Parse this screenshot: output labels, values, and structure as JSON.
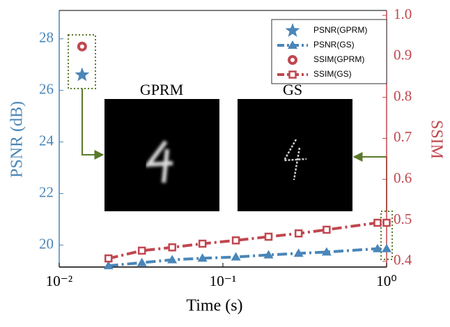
{
  "chart_data": {
    "type": "line",
    "x_label": "Time (s)",
    "y_label": "PSNR (dB)",
    "y2_label": "SSIM",
    "annotations": [
      "GPRM",
      "GS"
    ],
    "x_scale": "log",
    "xlim": [
      0.01,
      1
    ],
    "xticks": [
      {
        "value": 0.01,
        "label": "10⁻²"
      },
      {
        "value": 0.1,
        "label": "10⁻¹"
      },
      {
        "value": 1,
        "label": "10⁰"
      }
    ],
    "ylim": [
      19.15,
      29.1
    ],
    "yticks": [
      20,
      22,
      24,
      26,
      28
    ],
    "y2lim": [
      0.386,
      1.012
    ],
    "y2ticks": [
      0.4,
      0.5,
      0.6,
      0.7,
      0.8,
      0.9,
      {
        "value": 1,
        "label": "1.0"
      }
    ],
    "y_color": "#4a86b8",
    "y2_color": "#c0474f",
    "series": [
      {
        "name": "PSNR(GPRM)",
        "color": "#4a86b8",
        "marker": "star",
        "line": false,
        "x": [
          0.0138
        ],
        "values": [
          26.6
        ]
      },
      {
        "name": "PSNR(GS)",
        "color": "#4a86b8",
        "marker": "triangle",
        "line": true,
        "x": [
          0.02,
          0.032,
          0.049,
          0.075,
          0.12,
          0.19,
          0.29,
          0.43,
          0.88,
          1.0
        ],
        "values": [
          19.2,
          19.32,
          19.43,
          19.49,
          19.54,
          19.62,
          19.68,
          19.73,
          19.86,
          19.86
        ]
      },
      {
        "name": "SSIM(GPRM)",
        "color": "#c0474f",
        "marker": "circle",
        "line": false,
        "axis": "y2",
        "x": [
          0.0138
        ],
        "values": [
          0.924
        ]
      },
      {
        "name": "SSIM(GS)",
        "color": "#c0474f",
        "marker": "square",
        "line": true,
        "axis": "y2",
        "x": [
          0.02,
          0.032,
          0.049,
          0.075,
          0.12,
          0.19,
          0.29,
          0.43,
          0.88,
          1.0
        ],
        "values": [
          0.407,
          0.426,
          0.434,
          0.443,
          0.451,
          0.46,
          0.468,
          0.477,
          0.494,
          0.494
        ]
      }
    ]
  }
}
